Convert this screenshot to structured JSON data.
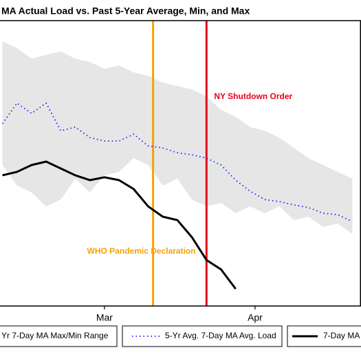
{
  "chart_data": {
    "type": "line",
    "title": "MA Actual Load vs. Past 5-Year Average, Min, and Max",
    "xlim": [
      -21.5,
      52.8
    ],
    "xticks": [
      {
        "value": 0,
        "label": "Mar"
      },
      {
        "value": 31,
        "label": "Apr"
      }
    ],
    "ylim": [
      0,
      100
    ],
    "x": [
      -21,
      -18,
      -15,
      -12,
      -9,
      -6,
      -3,
      0,
      3,
      6,
      9,
      12,
      15,
      18,
      21,
      24,
      27,
      30,
      33,
      36,
      39,
      42,
      45,
      48,
      51
    ],
    "band": {
      "name": "Yr 7-Day MA Max/Min Range",
      "color": "#e6e6e6",
      "upper": [
        92.8,
        90.4,
        86.7,
        88.0,
        89.2,
        86.7,
        85.5,
        83.1,
        84.3,
        81.9,
        80.7,
        78.3,
        77.1,
        75.9,
        73.5,
        68.7,
        66.3,
        62.7,
        61.4,
        59.0,
        55.4,
        51.8,
        49.4,
        47.0,
        44.6
      ],
      "lower": [
        49.4,
        42.2,
        39.8,
        34.9,
        37.3,
        44.6,
        39.8,
        45.8,
        47.0,
        51.8,
        49.4,
        42.2,
        44.6,
        37.3,
        34.9,
        36.1,
        32.5,
        34.9,
        32.5,
        34.9,
        30.1,
        31.3,
        27.7,
        28.9,
        25.3
      ]
    },
    "series": [
      {
        "name": "5-Yr Avg. 7-Day MA Avg. Load",
        "color": "#1a1aff",
        "dotted": true,
        "values": [
          63.9,
          71.1,
          67.5,
          71.1,
          61.4,
          62.7,
          59.0,
          57.8,
          57.8,
          60.2,
          56.1,
          55.4,
          53.7,
          53.0,
          51.8,
          49.4,
          44.1,
          40.2,
          37.3,
          36.6,
          35.4,
          34.5,
          32.5,
          32.0,
          29.6
        ]
      },
      {
        "name": "7-Day MA",
        "color": "#000000",
        "dotted": false,
        "x": [
          -21,
          -18,
          -15,
          -12,
          -9,
          -6,
          -3,
          0,
          3,
          6,
          9,
          12,
          15,
          18,
          21,
          24,
          27
        ],
        "values": [
          45.8,
          47.0,
          49.4,
          50.6,
          48.2,
          45.8,
          44.1,
          45.1,
          44.1,
          41.0,
          34.9,
          31.3,
          30.1,
          24.1,
          16.1,
          12.8,
          6.0
        ]
      }
    ],
    "vlines": [
      {
        "x": 10,
        "color": "#f5a300",
        "label": "WHO Pandemic Declaration"
      },
      {
        "x": 21,
        "color": "#e8001c",
        "label": "NY Shutdown Order"
      }
    ]
  }
}
